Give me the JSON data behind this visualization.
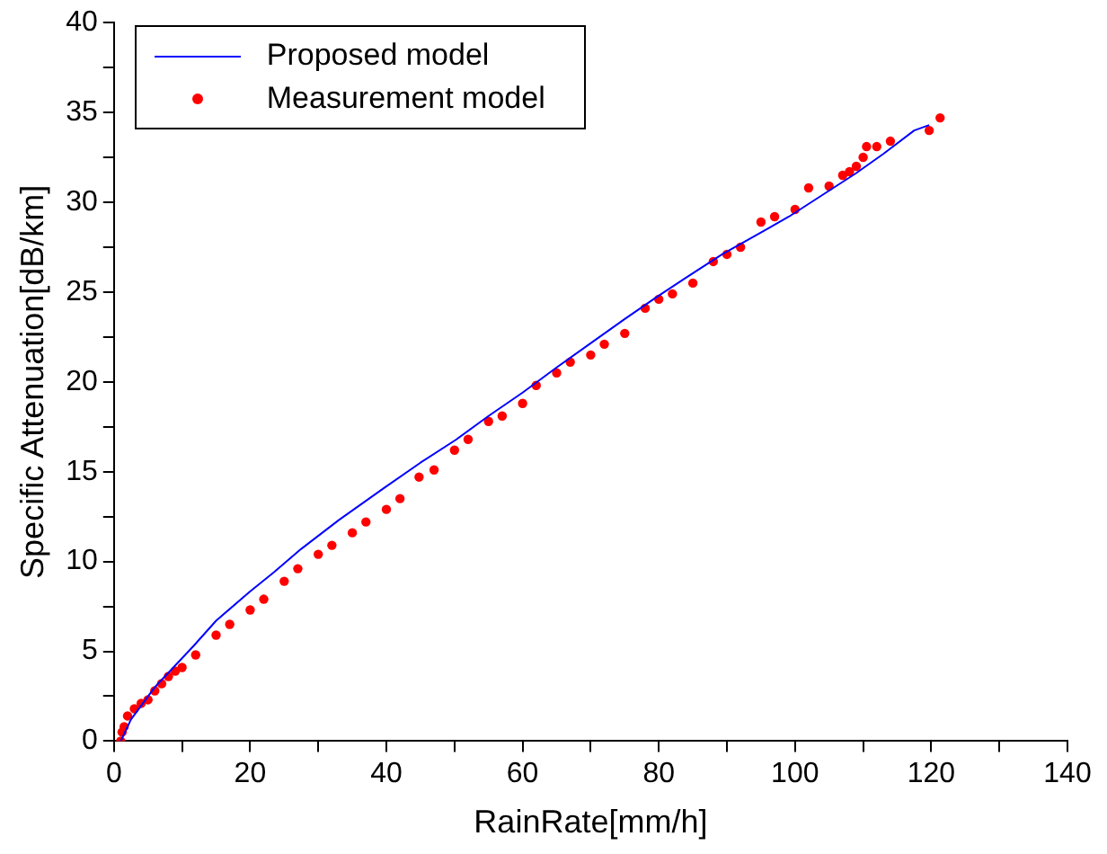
{
  "chart_data": {
    "type": "line",
    "xlabel": "RainRate[mm/h]",
    "ylabel": "Specific Attenuation[dB/km]",
    "xlim": [
      0,
      140
    ],
    "xticks": [
      0,
      {
        "value": 10,
        "label": null
      },
      20,
      {
        "value": 30,
        "label": null
      },
      40,
      {
        "value": 50,
        "label": null
      },
      60,
      {
        "value": 70,
        "label": null
      },
      80,
      {
        "value": 90,
        "label": null
      },
      100,
      {
        "value": 110,
        "label": null
      },
      120,
      {
        "value": 130,
        "label": null
      },
      140
    ],
    "ylim": [
      0,
      40
    ],
    "yticks": [
      0,
      {
        "value": 2.5,
        "label": null
      },
      5,
      {
        "value": 7.5,
        "label": null
      },
      10,
      {
        "value": 12.5,
        "label": null
      },
      15,
      {
        "value": 17.5,
        "label": null
      },
      20,
      {
        "value": 22.5,
        "label": null
      },
      25,
      {
        "value": 27.5,
        "label": null
      },
      30,
      {
        "value": 32.5,
        "label": null
      },
      35,
      {
        "value": 37.5,
        "label": null
      },
      40
    ],
    "grid": false,
    "legend": "top left",
    "series": [
      {
        "name": "Proposed model",
        "color": "#0000ff",
        "marker": "none",
        "line_style": "solid",
        "x": [
          1,
          2.5,
          6,
          11.7,
          15,
          19.9,
          23.5,
          27.5,
          33,
          39.7,
          45,
          50.3,
          55,
          60,
          65,
          69.8,
          75,
          79.6,
          84,
          89.3,
          94,
          99.1,
          104,
          108.9,
          113,
          117.5,
          119.7
        ],
        "values": [
          0,
          1.2,
          3,
          5.3,
          6.7,
          8.3,
          9.4,
          10.7,
          12.3,
          14.1,
          15.5,
          16.8,
          18.1,
          19.4,
          20.8,
          22.1,
          23.5,
          24.7,
          25.8,
          27.1,
          28.1,
          29.2,
          30.4,
          31.6,
          32.7,
          34,
          34.3
        ]
      },
      {
        "name": "Measurement model",
        "type": "scatter",
        "color": "#ff0000",
        "marker": "circle",
        "x": [
          1,
          1.2,
          1.5,
          2,
          3,
          4,
          5,
          6,
          7,
          8,
          9,
          10,
          12,
          15,
          17,
          20,
          22,
          25,
          27,
          30,
          32,
          35,
          37,
          40,
          42,
          44.8,
          47,
          50,
          52,
          55,
          57,
          60,
          62,
          65,
          67,
          70,
          72,
          75,
          78,
          80,
          82,
          85,
          88,
          90,
          92,
          95,
          97,
          100,
          102,
          105,
          107,
          108,
          109,
          110,
          110.5,
          112,
          114,
          119.7,
          121.3
        ],
        "values": [
          0,
          0.5,
          0.8,
          1.4,
          1.8,
          2.1,
          2.3,
          2.8,
          3.2,
          3.6,
          3.9,
          4.1,
          4.8,
          5.9,
          6.5,
          7.3,
          7.9,
          8.9,
          9.6,
          10.4,
          10.9,
          11.6,
          12.2,
          12.9,
          13.5,
          14.7,
          15.1,
          16.2,
          16.8,
          17.8,
          18.1,
          18.8,
          19.8,
          20.5,
          21.1,
          21.5,
          22.1,
          22.7,
          24.1,
          24.6,
          24.9,
          25.5,
          26.7,
          27.1,
          27.5,
          28.9,
          29.2,
          29.6,
          30.8,
          30.9,
          31.5,
          31.7,
          32,
          32.5,
          33.1,
          33.1,
          33.4,
          34,
          34.7
        ]
      }
    ]
  }
}
